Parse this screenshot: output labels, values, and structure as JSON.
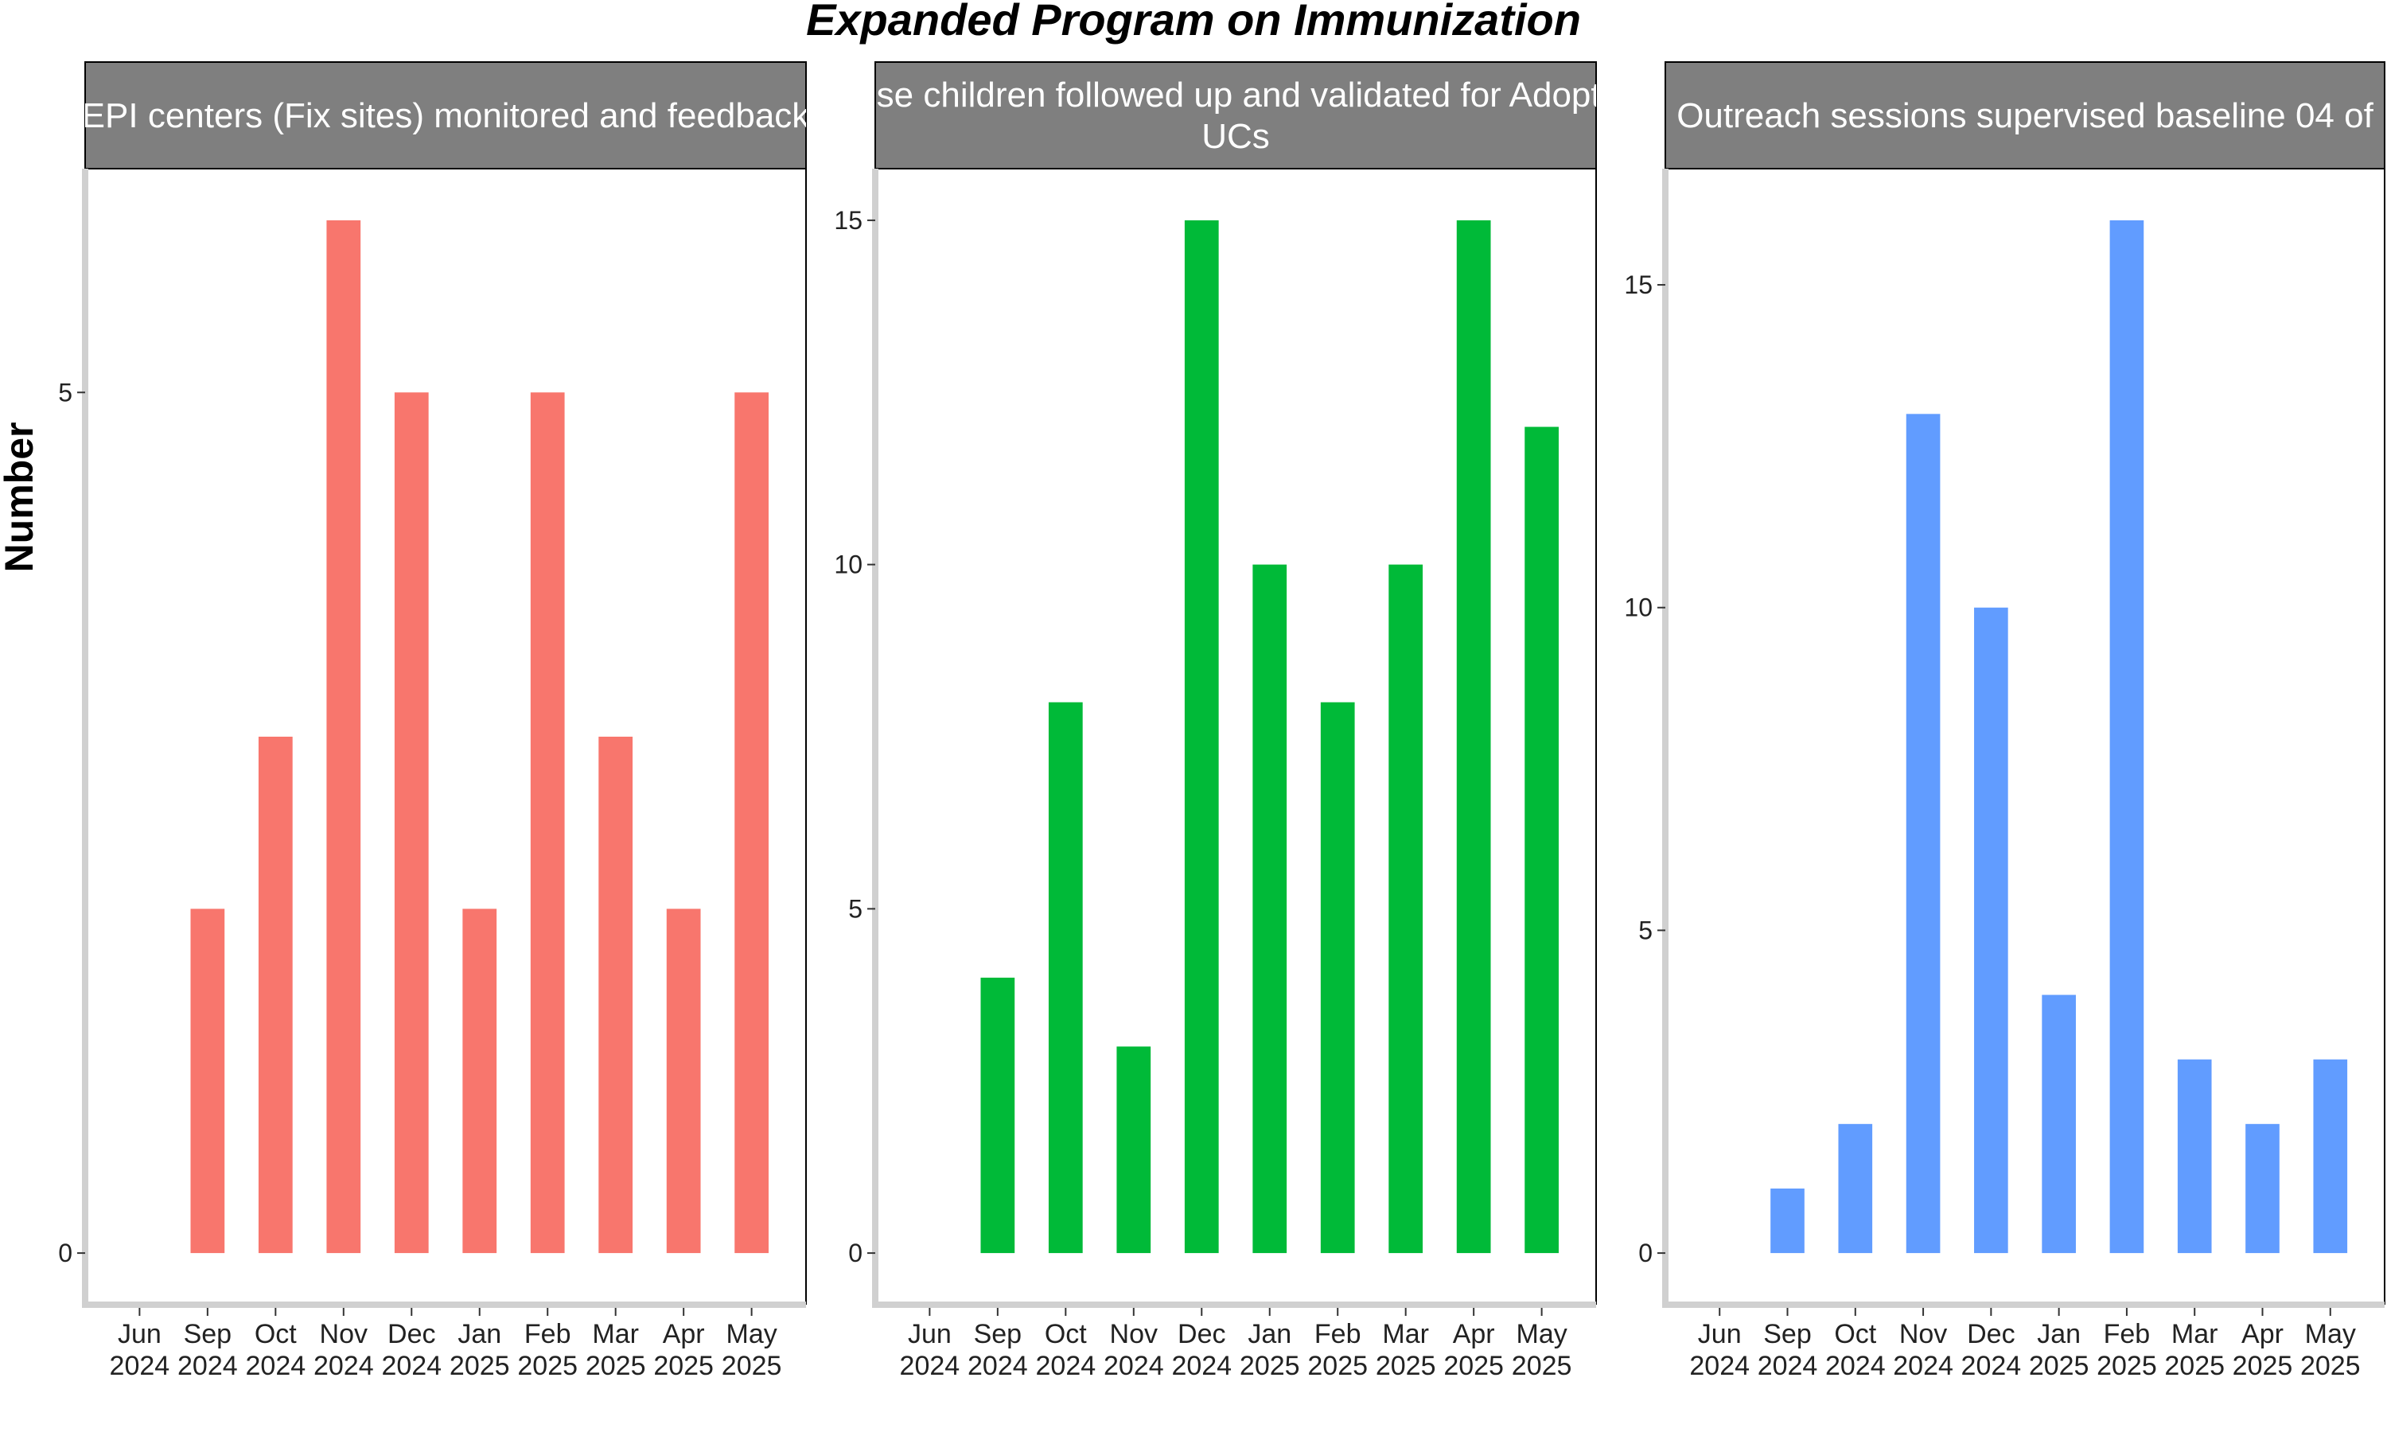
{
  "title": "Expanded Program on Immunization",
  "ylabel": "Number",
  "colors": {
    "series1": "#F8766D",
    "series2": "#00BA38",
    "series3": "#619CFF",
    "strip": "#7F7F7F",
    "axis": "#D0D0D0"
  },
  "chart_data": [
    {
      "type": "bar",
      "panel_title": "EPI centers (Fix sites) monitored and feedback",
      "categories": [
        "Jun 2024",
        "Sep 2024",
        "Oct 2024",
        "Nov 2024",
        "Dec 2024",
        "Jan 2025",
        "Feb 2025",
        "Mar 2025",
        "Apr 2025",
        "May 2025"
      ],
      "values": [
        null,
        2,
        3,
        6,
        5,
        2,
        5,
        3,
        2,
        5
      ],
      "yticks": [
        0,
        5
      ],
      "ylim": [
        -0.3,
        6.3
      ],
      "ylabel": "Number"
    },
    {
      "type": "bar",
      "panel_title": "Dose children followed up and validated for Adopted UCs",
      "categories": [
        "Jun 2024",
        "Sep 2024",
        "Oct 2024",
        "Nov 2024",
        "Dec 2024",
        "Jan 2025",
        "Feb 2025",
        "Mar 2025",
        "Apr 2025",
        "May 2025"
      ],
      "values": [
        null,
        4,
        8,
        3,
        15,
        10,
        8,
        10,
        15,
        12
      ],
      "yticks": [
        0,
        5,
        10,
        15
      ],
      "ylim": [
        -0.75,
        15.75
      ],
      "ylabel": "Number"
    },
    {
      "type": "bar",
      "panel_title": "Outreach sessions supervised baseline 04 of",
      "categories": [
        "Jun 2024",
        "Sep 2024",
        "Oct 2024",
        "Nov 2024",
        "Dec 2024",
        "Jan 2025",
        "Feb 2025",
        "Mar 2025",
        "Apr 2025",
        "May 2025"
      ],
      "values": [
        null,
        1,
        2,
        13,
        10,
        4,
        16,
        3,
        2,
        3
      ],
      "yticks": [
        0,
        5,
        10,
        15
      ],
      "ylim": [
        -0.8,
        16.8
      ],
      "ylabel": "Number"
    }
  ]
}
